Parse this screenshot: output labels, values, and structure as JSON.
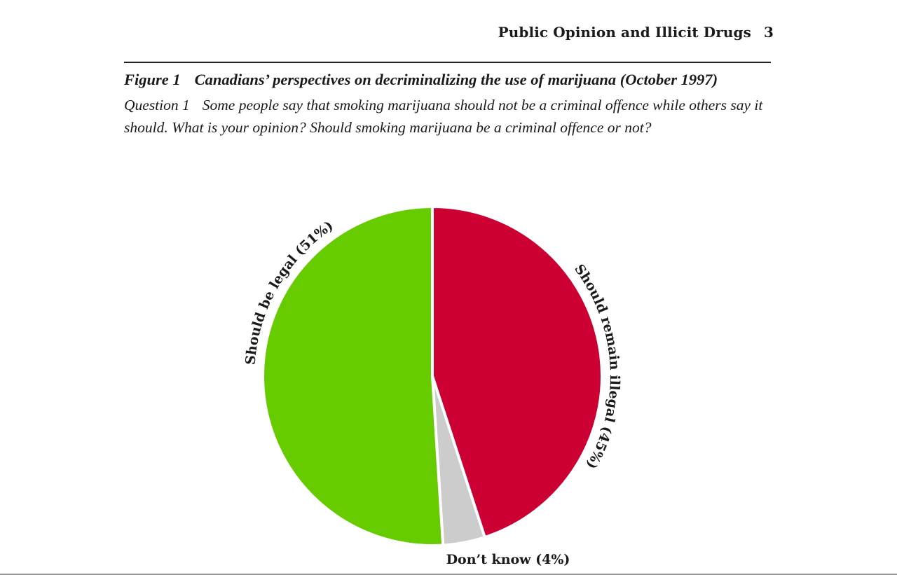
{
  "header": {
    "running_title": "Public Opinion and Illicit Drugs",
    "page_number": "3"
  },
  "caption": {
    "figure_label": "Figure 1",
    "figure_title": "Canadians’ perspectives on decriminalizing the use of marijuana (October 1997)",
    "question_label": "Question 1",
    "question_text": "Some people say that smoking marijuana should not be a criminal offence while others say it should. What is your opinion? Should smoking marijuana be a criminal offence or not?"
  },
  "chart_data": {
    "type": "pie",
    "title": "",
    "slices": [
      {
        "label": "Should remain illegal (45%)",
        "value": 45,
        "color": "#cc0033"
      },
      {
        "label": "Don’t know (4%)",
        "value": 4,
        "color": "#cccccc"
      },
      {
        "label": "Should be legal (51%)",
        "value": 51,
        "color": "#66cc00"
      }
    ],
    "start": "12 o'clock",
    "direction": "clockwise",
    "edge_color": "#ffffff",
    "legend": "none (direct labels)"
  }
}
